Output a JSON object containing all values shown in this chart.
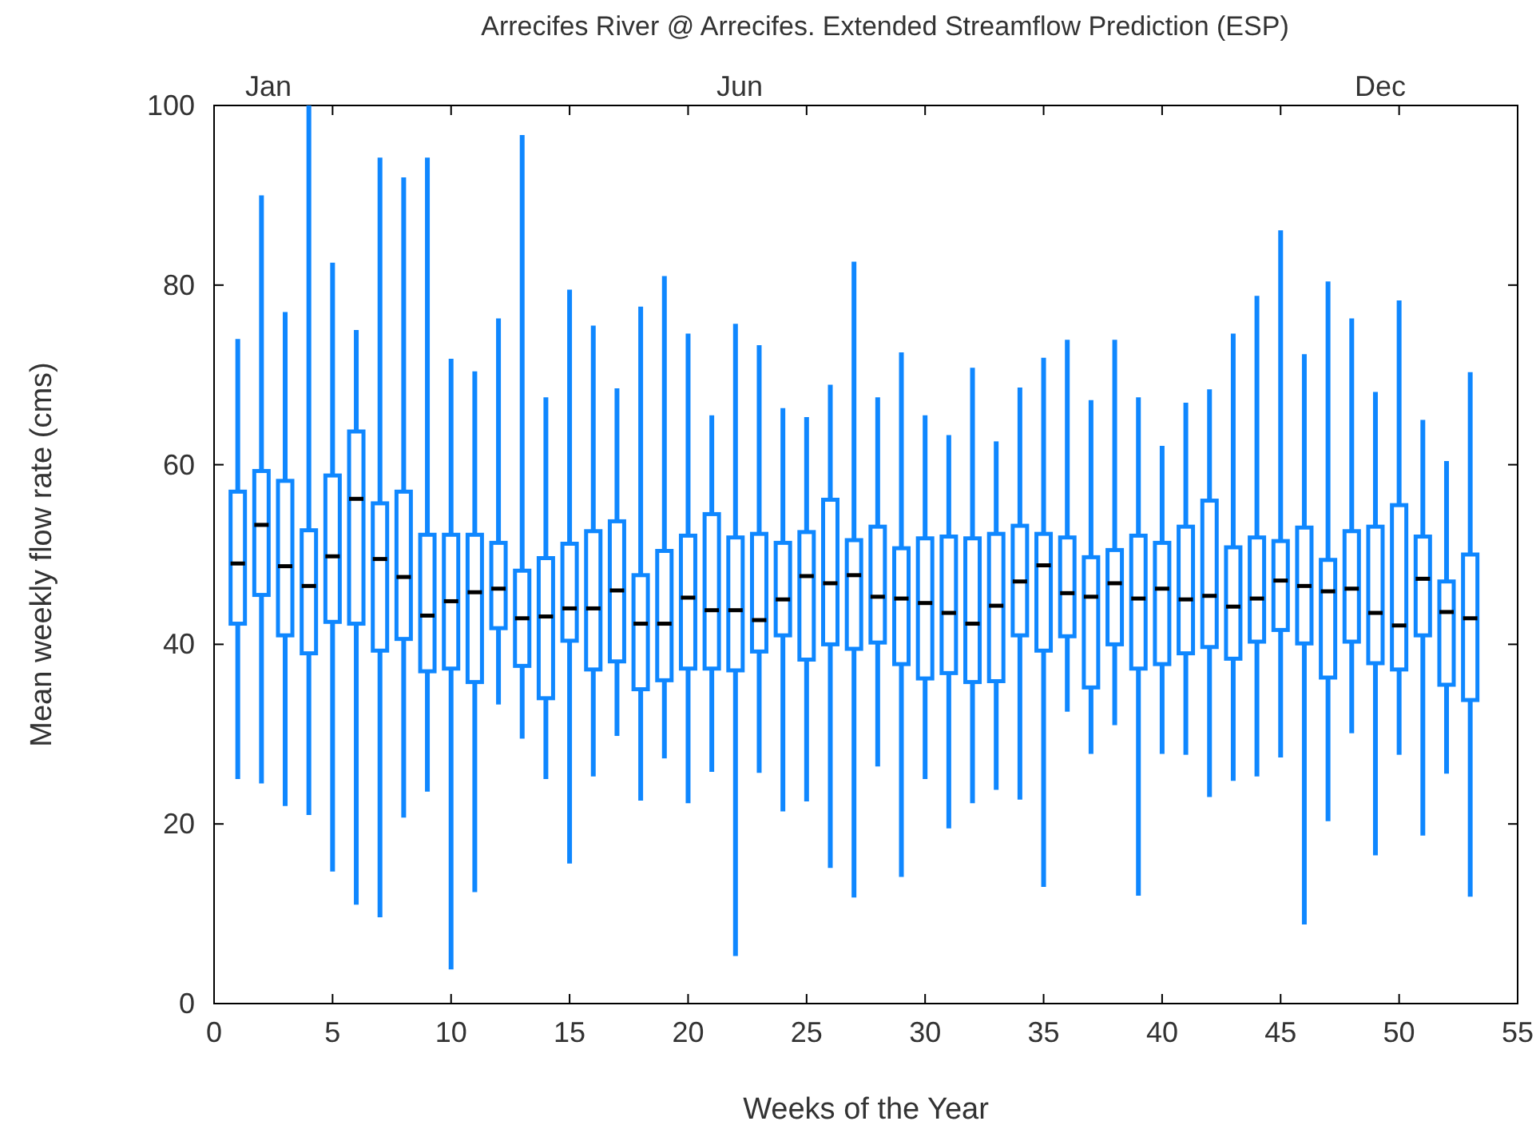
{
  "chart_data": {
    "type": "box",
    "title": "Arrecifes River @ Arrecifes. Extended Streamflow Prediction (ESP)",
    "xlabel": "Weeks of the Year",
    "ylabel": "Mean weekly flow rate (cms)",
    "color": "#0f87ff",
    "x": [
      1,
      2,
      3,
      4,
      5,
      6,
      7,
      8,
      9,
      10,
      11,
      12,
      13,
      14,
      15,
      16,
      17,
      18,
      19,
      20,
      21,
      22,
      23,
      24,
      25,
      26,
      27,
      28,
      29,
      30,
      31,
      32,
      33,
      34,
      35,
      36,
      37,
      38,
      39,
      40,
      41,
      42,
      43,
      44,
      45,
      46,
      47,
      48,
      49,
      50,
      51,
      52,
      53
    ],
    "xlim": [
      0,
      55
    ],
    "xticks": [
      0,
      5,
      10,
      15,
      20,
      25,
      30,
      35,
      40,
      45,
      50,
      55
    ],
    "annotations": [
      "Jan",
      "Jun",
      "Dec"
    ],
    "ylim": [
      0,
      100
    ],
    "yticks": [
      0,
      20,
      40,
      60,
      80,
      100
    ],
    "boxes": [
      {
        "low": 25,
        "q1": 42.3,
        "median": 49,
        "q3": 57,
        "high": 74
      },
      {
        "low": 24.5,
        "q1": 45.5,
        "median": 53.3,
        "q3": 59.3,
        "high": 90
      },
      {
        "low": 22,
        "q1": 41,
        "median": 48.7,
        "q3": 58.2,
        "high": 77
      },
      {
        "low": 21,
        "q1": 39,
        "median": 46.5,
        "q3": 52.7,
        "high": 100
      },
      {
        "low": 14.7,
        "q1": 42.5,
        "median": 49.8,
        "q3": 58.8,
        "high": 82.5
      },
      {
        "low": 11,
        "q1": 42.3,
        "median": 56.2,
        "q3": 63.7,
        "high": 75
      },
      {
        "low": 9.6,
        "q1": 39.3,
        "median": 49.5,
        "q3": 55.7,
        "high": 94.2
      },
      {
        "low": 20.7,
        "q1": 40.6,
        "median": 47.5,
        "q3": 57,
        "high": 92
      },
      {
        "low": 23.6,
        "q1": 37,
        "median": 43.2,
        "q3": 52.2,
        "high": 94.2
      },
      {
        "low": 3.8,
        "q1": 37.3,
        "median": 44.8,
        "q3": 52.2,
        "high": 71.8
      },
      {
        "low": 12.4,
        "q1": 35.8,
        "median": 45.8,
        "q3": 52.2,
        "high": 70.4
      },
      {
        "low": 33.3,
        "q1": 41.8,
        "median": 46.2,
        "q3": 51.3,
        "high": 76.3
      },
      {
        "low": 29.5,
        "q1": 37.6,
        "median": 42.9,
        "q3": 48.2,
        "high": 96.7
      },
      {
        "low": 25,
        "q1": 34,
        "median": 43.1,
        "q3": 49.6,
        "high": 67.5
      },
      {
        "low": 15.6,
        "q1": 40.4,
        "median": 44,
        "q3": 51.2,
        "high": 79.5
      },
      {
        "low": 25.3,
        "q1": 37.2,
        "median": 44,
        "q3": 52.6,
        "high": 75.5
      },
      {
        "low": 29.8,
        "q1": 38.1,
        "median": 46,
        "q3": 53.7,
        "high": 68.5
      },
      {
        "low": 22.6,
        "q1": 35,
        "median": 42.3,
        "q3": 47.7,
        "high": 77.6
      },
      {
        "low": 27.3,
        "q1": 36,
        "median": 42.3,
        "q3": 50.4,
        "high": 81
      },
      {
        "low": 22.3,
        "q1": 37.3,
        "median": 45.2,
        "q3": 52.1,
        "high": 74.6
      },
      {
        "low": 25.8,
        "q1": 37.3,
        "median": 43.8,
        "q3": 54.5,
        "high": 65.5
      },
      {
        "low": 5.3,
        "q1": 37.1,
        "median": 43.8,
        "q3": 51.9,
        "high": 75.7
      },
      {
        "low": 25.7,
        "q1": 39.2,
        "median": 42.7,
        "q3": 52.3,
        "high": 73.3
      },
      {
        "low": 21.4,
        "q1": 41,
        "median": 45,
        "q3": 51.3,
        "high": 66.3
      },
      {
        "low": 22.5,
        "q1": 38.3,
        "median": 47.6,
        "q3": 52.5,
        "high": 65.3
      },
      {
        "low": 15.1,
        "q1": 40,
        "median": 46.8,
        "q3": 56.1,
        "high": 68.9
      },
      {
        "low": 11.8,
        "q1": 39.5,
        "median": 47.7,
        "q3": 51.6,
        "high": 82.6
      },
      {
        "low": 26.4,
        "q1": 40.2,
        "median": 45.3,
        "q3": 53.1,
        "high": 67.5
      },
      {
        "low": 14.1,
        "q1": 37.8,
        "median": 45.1,
        "q3": 50.7,
        "high": 72.5
      },
      {
        "low": 25,
        "q1": 36.2,
        "median": 44.6,
        "q3": 51.8,
        "high": 65.5
      },
      {
        "low": 19.5,
        "q1": 36.8,
        "median": 43.5,
        "q3": 52,
        "high": 63.3
      },
      {
        "low": 22.3,
        "q1": 35.8,
        "median": 42.3,
        "q3": 51.8,
        "high": 70.8
      },
      {
        "low": 23.8,
        "q1": 35.9,
        "median": 44.3,
        "q3": 52.3,
        "high": 62.6
      },
      {
        "low": 22.7,
        "q1": 41,
        "median": 47,
        "q3": 53.2,
        "high": 68.6
      },
      {
        "low": 13,
        "q1": 39.3,
        "median": 48.8,
        "q3": 52.3,
        "high": 71.9
      },
      {
        "low": 32.5,
        "q1": 40.9,
        "median": 45.7,
        "q3": 51.9,
        "high": 73.9
      },
      {
        "low": 27.8,
        "q1": 35.2,
        "median": 45.3,
        "q3": 49.7,
        "high": 67.2
      },
      {
        "low": 31,
        "q1": 40,
        "median": 46.8,
        "q3": 50.5,
        "high": 73.9
      },
      {
        "low": 12,
        "q1": 37.3,
        "median": 45.1,
        "q3": 52.1,
        "high": 67.5
      },
      {
        "low": 27.8,
        "q1": 37.8,
        "median": 46.2,
        "q3": 51.3,
        "high": 62.1
      },
      {
        "low": 27.7,
        "q1": 39,
        "median": 45,
        "q3": 53.1,
        "high": 66.9
      },
      {
        "low": 23,
        "q1": 39.7,
        "median": 45.4,
        "q3": 56,
        "high": 68.4
      },
      {
        "low": 24.8,
        "q1": 38.4,
        "median": 44.2,
        "q3": 50.8,
        "high": 74.6
      },
      {
        "low": 25.3,
        "q1": 40.3,
        "median": 45.1,
        "q3": 51.9,
        "high": 78.8
      },
      {
        "low": 27.4,
        "q1": 41.6,
        "median": 47.1,
        "q3": 51.5,
        "high": 86.1
      },
      {
        "low": 8.8,
        "q1": 40.1,
        "median": 46.5,
        "q3": 53,
        "high": 72.3
      },
      {
        "low": 20.3,
        "q1": 36.3,
        "median": 45.9,
        "q3": 49.4,
        "high": 80.4
      },
      {
        "low": 30.1,
        "q1": 40.3,
        "median": 46.2,
        "q3": 52.6,
        "high": 76.3
      },
      {
        "low": 16.5,
        "q1": 37.9,
        "median": 43.5,
        "q3": 53.1,
        "high": 68.1
      },
      {
        "low": 27.7,
        "q1": 37.2,
        "median": 42.1,
        "q3": 55.5,
        "high": 78.3
      },
      {
        "low": 18.7,
        "q1": 41,
        "median": 47.3,
        "q3": 52,
        "high": 65
      },
      {
        "low": 25.6,
        "q1": 35.5,
        "median": 43.6,
        "q3": 47,
        "high": 60.4
      },
      {
        "low": 11.9,
        "q1": 33.8,
        "median": 42.9,
        "q3": 50,
        "high": 70.3
      }
    ]
  }
}
